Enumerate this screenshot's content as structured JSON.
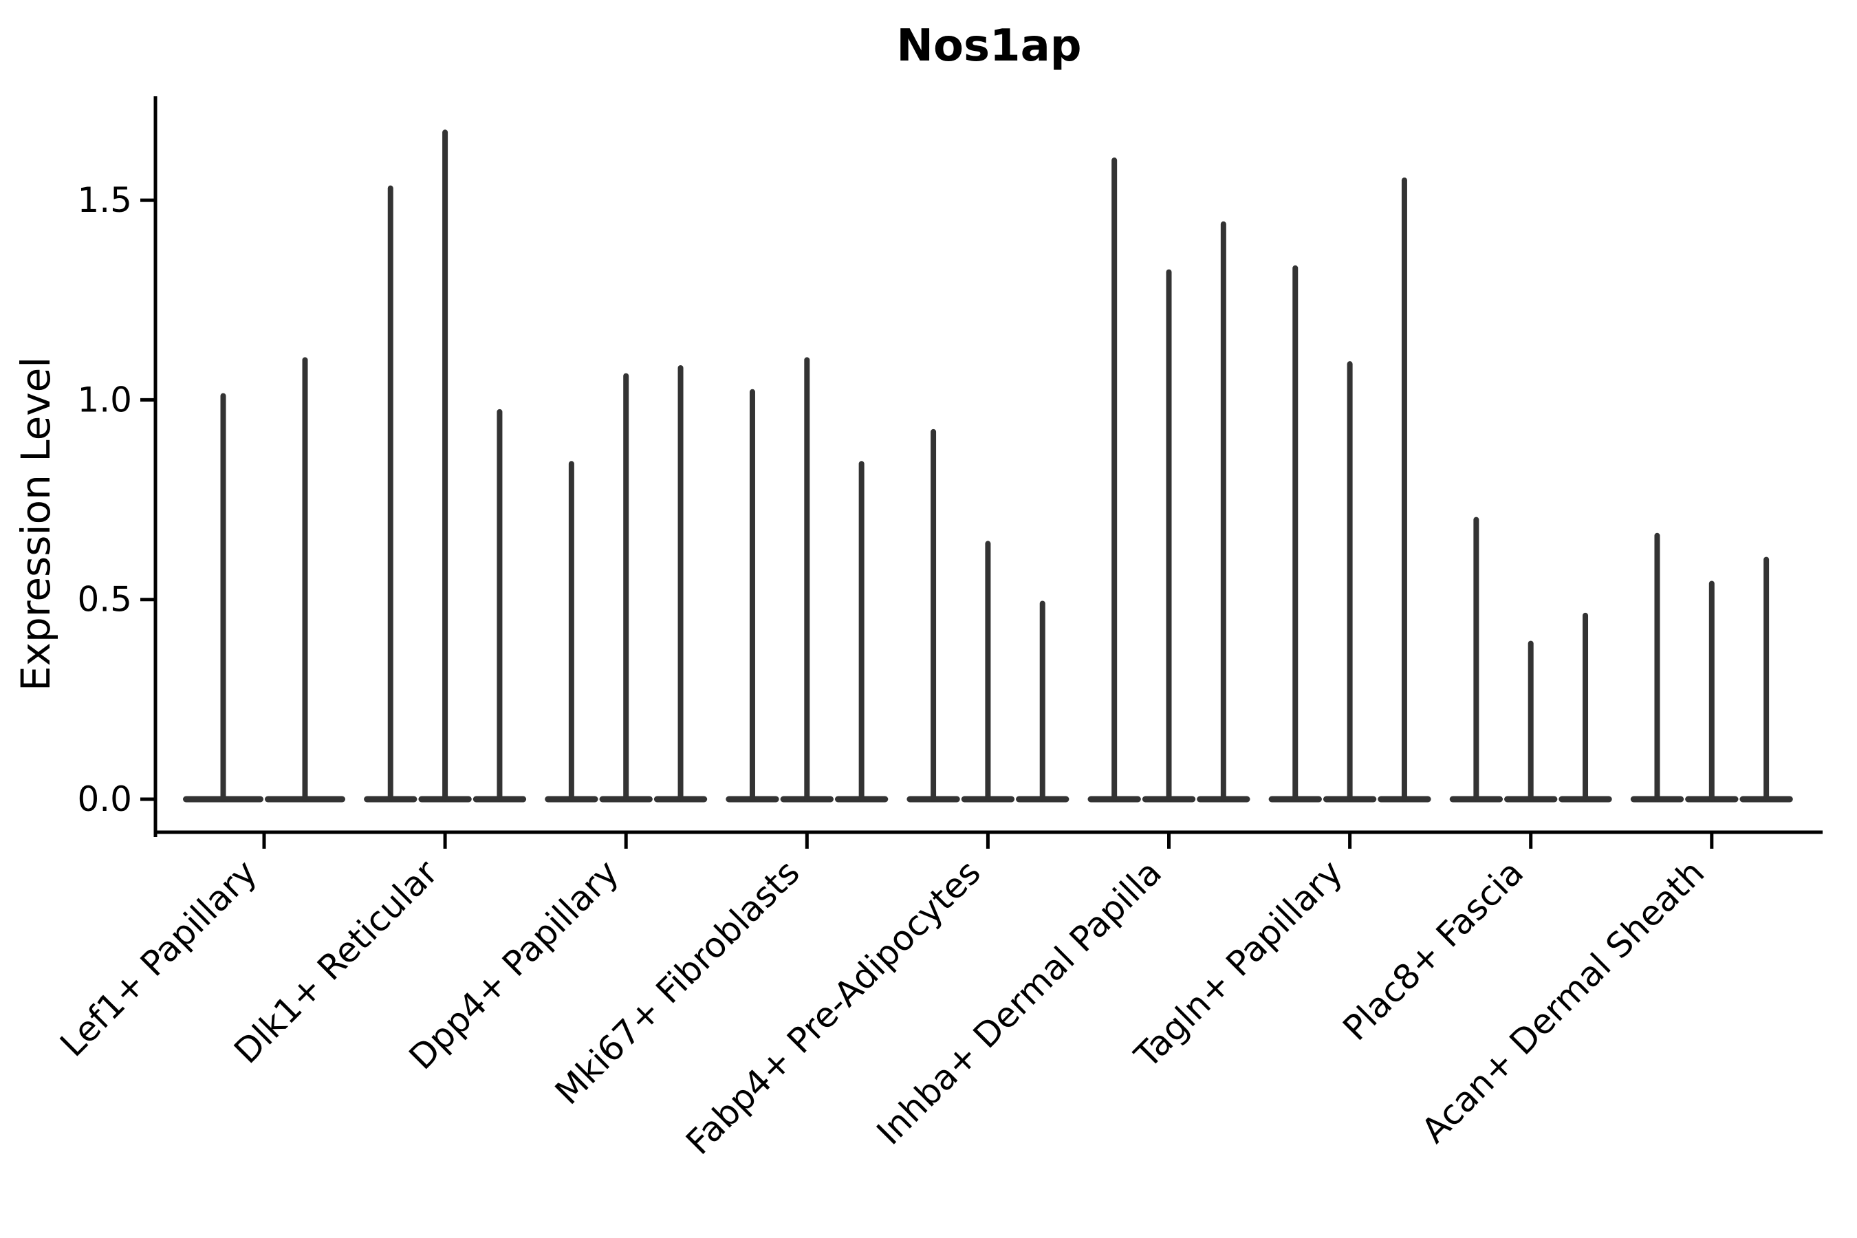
{
  "title": "Nos1ap",
  "colors": {
    "background": "#ffffff",
    "axis": "#000000",
    "text": "#000000",
    "violin": "#333333"
  },
  "chart_data": {
    "type": "violin",
    "title": "Nos1ap",
    "xlabel": "",
    "ylabel": "Expression Level",
    "ylim": [
      -0.08,
      1.76
    ],
    "yticks": [
      0.0,
      0.5,
      1.0,
      1.5
    ],
    "ytick_labels": [
      "0.0",
      "0.5",
      "1.0",
      "1.5"
    ],
    "grid": false,
    "legend_position": "none",
    "description": "Zero-inflated single-cell expression violins collapsed to thin spikes; each category holds 2-3 violins whose spikes mark maximum expression",
    "categories": [
      "Lef1+ Papillary",
      "Dlk1+ Reticular",
      "Dpp4+ Papillary",
      "Mki67+ Fibroblasts",
      "Fabp4+ Pre-Adipocytes",
      "Inhba+ Dermal Papilla",
      "Tagln+ Papillary",
      "Plac8+ Fascia",
      "Acan+ Dermal Sheath"
    ],
    "groups": [
      {
        "category": "Lef1+ Papillary",
        "spike_values": [
          1.01,
          1.1
        ]
      },
      {
        "category": "Dlk1+ Reticular",
        "spike_values": [
          1.53,
          1.67,
          0.97
        ]
      },
      {
        "category": "Dpp4+ Papillary",
        "spike_values": [
          0.84,
          1.06,
          1.08
        ]
      },
      {
        "category": "Mki67+ Fibroblasts",
        "spike_values": [
          1.02,
          1.1,
          0.84
        ]
      },
      {
        "category": "Fabp4+ Pre-Adipocytes",
        "spike_values": [
          0.92,
          0.64,
          0.49
        ]
      },
      {
        "category": "Inhba+ Dermal Papilla",
        "spike_values": [
          1.6,
          1.32,
          1.44
        ]
      },
      {
        "category": "Tagln+ Papillary",
        "spike_values": [
          1.33,
          1.09,
          1.55
        ]
      },
      {
        "category": "Plac8+ Fascia",
        "spike_values": [
          0.7,
          0.39,
          0.46
        ]
      },
      {
        "category": "Acan+ Dermal Sheath",
        "spike_values": [
          0.66,
          0.54,
          0.6
        ]
      }
    ]
  }
}
